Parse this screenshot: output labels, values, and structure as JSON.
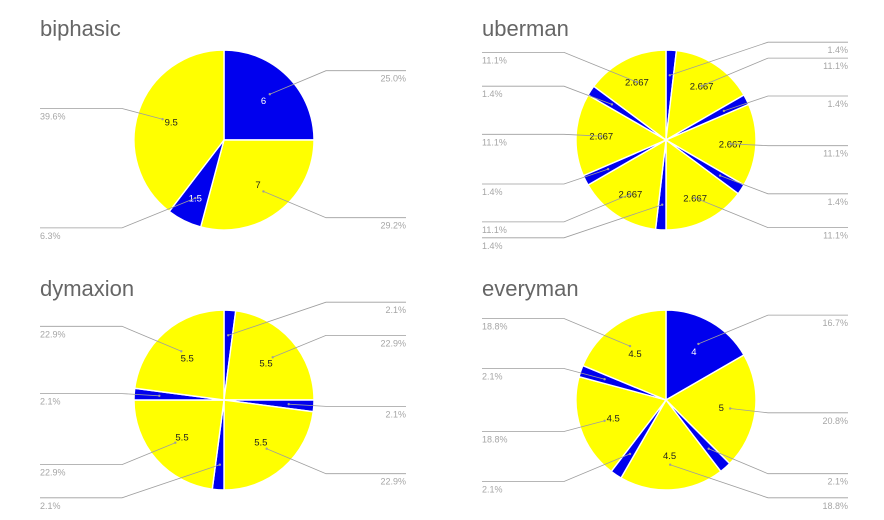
{
  "chart_data": [
    {
      "type": "pie",
      "title": "biphasic",
      "colors": [
        "#0000ee",
        "#ffff00"
      ],
      "slices": [
        {
          "value": 6,
          "label": "6",
          "percent": "25.0%",
          "color": "#0000ee"
        },
        {
          "value": 7,
          "label": "7",
          "percent": "29.2%",
          "color": "#ffff00"
        },
        {
          "value": 1.5,
          "label": "1.5",
          "percent": "6.3%",
          "color": "#0000ee"
        },
        {
          "value": 9.5,
          "label": "9.5",
          "percent": "39.6%",
          "color": "#ffff00"
        }
      ]
    },
    {
      "type": "pie",
      "title": "uberman",
      "colors": [
        "#0000ee",
        "#ffff00"
      ],
      "slices": [
        {
          "value": 0.333,
          "label": "",
          "percent": "1.4%",
          "color": "#0000ee"
        },
        {
          "value": 2.667,
          "label": "2.667",
          "percent": "11.1%",
          "color": "#ffff00"
        },
        {
          "value": 0.333,
          "label": "",
          "percent": "1.4%",
          "color": "#0000ee"
        },
        {
          "value": 2.667,
          "label": "2.667",
          "percent": "11.1%",
          "color": "#ffff00"
        },
        {
          "value": 0.333,
          "label": "",
          "percent": "1.4%",
          "color": "#0000ee"
        },
        {
          "value": 2.667,
          "label": "2.667",
          "percent": "11.1%",
          "color": "#ffff00"
        },
        {
          "value": 0.333,
          "label": "",
          "percent": "1.4%",
          "color": "#0000ee"
        },
        {
          "value": 2.667,
          "label": "2.667",
          "percent": "11.1%",
          "color": "#ffff00"
        },
        {
          "value": 0.333,
          "label": "",
          "percent": "1.4%",
          "color": "#0000ee"
        },
        {
          "value": 2.667,
          "label": "2.667",
          "percent": "11.1%",
          "color": "#ffff00"
        },
        {
          "value": 0.333,
          "label": "",
          "percent": "1.4%",
          "color": "#0000ee"
        },
        {
          "value": 2.667,
          "label": "2.667",
          "percent": "11.1%",
          "color": "#ffff00"
        }
      ]
    },
    {
      "type": "pie",
      "title": "dymaxion",
      "colors": [
        "#0000ee",
        "#ffff00"
      ],
      "slices": [
        {
          "value": 0.5,
          "label": "",
          "percent": "2.1%",
          "color": "#0000ee"
        },
        {
          "value": 5.5,
          "label": "5.5",
          "percent": "22.9%",
          "color": "#ffff00"
        },
        {
          "value": 0.5,
          "label": "",
          "percent": "2.1%",
          "color": "#0000ee"
        },
        {
          "value": 5.5,
          "label": "5.5",
          "percent": "22.9%",
          "color": "#ffff00"
        },
        {
          "value": 0.5,
          "label": "",
          "percent": "2.1%",
          "color": "#0000ee"
        },
        {
          "value": 5.5,
          "label": "5.5",
          "percent": "22.9%",
          "color": "#ffff00"
        },
        {
          "value": 0.5,
          "label": "",
          "percent": "2.1%",
          "color": "#0000ee"
        },
        {
          "value": 5.5,
          "label": "5.5",
          "percent": "22.9%",
          "color": "#ffff00"
        }
      ]
    },
    {
      "type": "pie",
      "title": "everyman",
      "colors": [
        "#0000ee",
        "#ffff00"
      ],
      "slices": [
        {
          "value": 4,
          "label": "4",
          "percent": "16.7%",
          "color": "#0000ee"
        },
        {
          "value": 5,
          "label": "5",
          "percent": "20.8%",
          "color": "#ffff00"
        },
        {
          "value": 0.5,
          "label": "",
          "percent": "2.1%",
          "color": "#0000ee"
        },
        {
          "value": 4.5,
          "label": "4.5",
          "percent": "18.8%",
          "color": "#ffff00"
        },
        {
          "value": 0.5,
          "label": "",
          "percent": "2.1%",
          "color": "#0000ee"
        },
        {
          "value": 4.5,
          "label": "4.5",
          "percent": "18.8%",
          "color": "#ffff00"
        },
        {
          "value": 0.5,
          "label": "",
          "percent": "2.1%",
          "color": "#0000ee"
        },
        {
          "value": 4.5,
          "label": "4.5",
          "percent": "18.8%",
          "color": "#ffff00"
        }
      ]
    }
  ]
}
